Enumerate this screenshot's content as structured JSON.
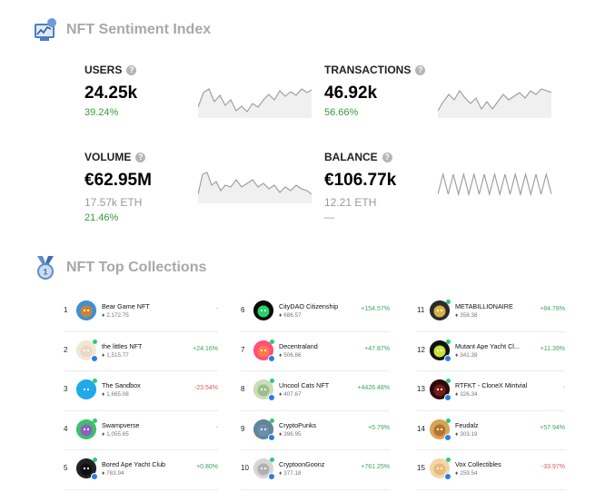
{
  "sentiment": {
    "title": "NFT Sentiment Index",
    "icon": "sentiment-chart-icon",
    "stats": [
      {
        "key": "users",
        "label": "USERS",
        "value": "24.25k",
        "sub": "",
        "pct": "39.24%"
      },
      {
        "key": "transactions",
        "label": "TRANSACTIONS",
        "value": "46.92k",
        "sub": "",
        "pct": "56.66%"
      },
      {
        "key": "volume",
        "label": "VOLUME",
        "value": "€62.95M",
        "sub": "17.57k ETH",
        "pct": "21.46%"
      },
      {
        "key": "balance",
        "label": "BALANCE",
        "value": "€106.77k",
        "sub": "12.21 ETH",
        "pct": "—"
      }
    ],
    "help_glyph": "?"
  },
  "colors": {
    "up": "#3aa55a",
    "down": "#e05858",
    "muted": "#999999",
    "spark": "#9a9a9a"
  },
  "collections": {
    "title": "NFT Top Collections",
    "icon": "medal-icon",
    "eth_glyph": "♦",
    "items": [
      {
        "rank": "1",
        "name": "Bear Game NFT",
        "floor": "2,172.75",
        "change": "-",
        "trend": "flat",
        "color": "#c9832f",
        "bg": "#3d8fd6"
      },
      {
        "rank": "2",
        "name": "the littles NFT",
        "floor": "1,515.77",
        "change": "+24.16%",
        "trend": "up",
        "color": "#e9d9c3",
        "bg": "#f1e7d6"
      },
      {
        "rank": "3",
        "name": "The Sandbox",
        "floor": "1,665.08",
        "change": "-23.54%",
        "trend": "down",
        "color": "#1fa9e8",
        "bg": "#1fa9e8"
      },
      {
        "rank": "4",
        "name": "Swampverse",
        "floor": "1,055.65",
        "change": "-",
        "trend": "flat",
        "color": "#8e5ec2",
        "bg": "#3fbf6a"
      },
      {
        "rank": "5",
        "name": "Bored Ape Yacht Club",
        "floor": "783.94",
        "change": "+0.80%",
        "trend": "up",
        "color": "#111111",
        "bg": "#222222"
      },
      {
        "rank": "6",
        "name": "CityDAO Citizenship",
        "floor": "686.57",
        "change": "+154.57%",
        "trend": "up",
        "color": "#26d36b",
        "bg": "#0a0a0a"
      },
      {
        "rank": "7",
        "name": "Decentraland",
        "floor": "506.86",
        "change": "+47.87%",
        "trend": "up",
        "color": "#ff7a4a",
        "bg": "#ff4f7a"
      },
      {
        "rank": "8",
        "name": "Uncool Cats NFT",
        "floor": "407.67",
        "change": "+4426.48%",
        "trend": "up",
        "color": "#9bbf8a",
        "bg": "#c8ddb8"
      },
      {
        "rank": "9",
        "name": "CryptoPunks",
        "floor": "396.95",
        "change": "+5.79%",
        "trend": "up",
        "color": "#6a8fb0",
        "bg": "#638596"
      },
      {
        "rank": "10",
        "name": "CryptoonGoonz",
        "floor": "377.18",
        "change": "+761.25%",
        "trend": "up",
        "color": "#b0b0b0",
        "bg": "#d6d6d6"
      },
      {
        "rank": "11",
        "name": "METABILLIONAIRE",
        "floor": "358.38",
        "change": "+84.78%",
        "trend": "up",
        "color": "#d9b24a",
        "bg": "#2c2c2c"
      },
      {
        "rank": "12",
        "name": "Mutant Ape Yacht Cl...",
        "floor": "341.39",
        "change": "+11.39%",
        "trend": "up",
        "color": "#c9e23a",
        "bg": "#111111"
      },
      {
        "rank": "13",
        "name": "RTFKT - CloneX Mintvial",
        "floor": "326.34",
        "change": "-",
        "trend": "flat",
        "color": "#7a1a1a",
        "bg": "#2a0a0a"
      },
      {
        "rank": "14",
        "name": "Feudalz",
        "floor": "303.19",
        "change": "+57.94%",
        "trend": "up",
        "color": "#b5742a",
        "bg": "#d7a35a"
      },
      {
        "rank": "15",
        "name": "Vox Collectibles",
        "floor": "259.54",
        "change": "-33.97%",
        "trend": "down",
        "color": "#e8b97a",
        "bg": "#f2d6a8"
      }
    ]
  }
}
